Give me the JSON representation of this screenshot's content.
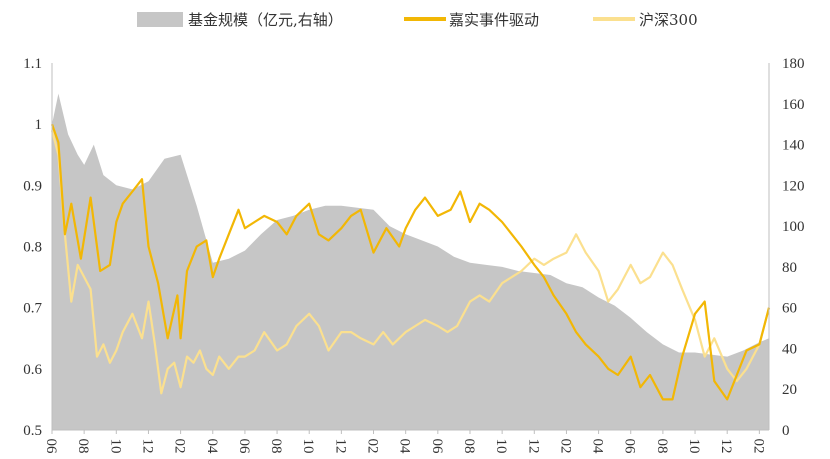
{
  "chart_data": {
    "type": "line",
    "legend": {
      "position": "top",
      "items": [
        {
          "label": "基金规模（亿元,右轴）",
          "color": "#c6c6c6",
          "kind": "area"
        },
        {
          "label": "嘉实事件驱动",
          "color": "#f2b705",
          "kind": "line"
        },
        {
          "label": "沪深300",
          "color": "#fbe08f",
          "kind": "line"
        }
      ]
    },
    "x_tick_labels": [
      "06",
      "08",
      "10",
      "12",
      "02",
      "04",
      "06",
      "08",
      "10",
      "12",
      "02",
      "04",
      "06",
      "08",
      "10",
      "12",
      "02",
      "04",
      "06",
      "08",
      "10",
      "12",
      "02"
    ],
    "y_left": {
      "min": 0.5,
      "max": 1.1,
      "ticks": [
        "0.5",
        "0.6",
        "0.7",
        "0.8",
        "0.9",
        "1",
        "1.1"
      ]
    },
    "y_right": {
      "min": 0,
      "max": 180,
      "ticks": [
        "0",
        "20",
        "40",
        "60",
        "80",
        "100",
        "120",
        "140",
        "160",
        "180"
      ]
    },
    "series": [
      {
        "name": "基金规模（亿元,右轴）",
        "axis": "right",
        "color": "#c6c6c6",
        "x": [
          0,
          0.2,
          0.5,
          0.8,
          1,
          1.3,
          1.6,
          2,
          2.5,
          3,
          3.5,
          4,
          4.5,
          5,
          5.5,
          6,
          6.5,
          7,
          7.5,
          8,
          8.5,
          9,
          9.5,
          10,
          10.5,
          11,
          11.5,
          12,
          12.5,
          13,
          13.5,
          14,
          14.5,
          15,
          15.5,
          16,
          16.5,
          17,
          17.5,
          18,
          18.5,
          19,
          19.5,
          20,
          20.5,
          21,
          21.5,
          22,
          22.3
        ],
        "values": [
          150,
          165,
          145,
          135,
          130,
          140,
          125,
          120,
          118,
          122,
          133,
          135,
          110,
          82,
          84,
          88,
          96,
          103,
          105,
          108,
          110,
          110,
          109,
          108,
          100,
          96,
          93,
          90,
          85,
          82,
          81,
          80,
          78,
          77,
          76,
          72,
          70,
          65,
          61,
          55,
          48,
          42,
          38,
          38,
          37,
          36,
          39,
          43,
          45
        ]
      },
      {
        "name": "嘉实事件驱动",
        "axis": "left",
        "color": "#f2b705",
        "x": [
          0,
          0.2,
          0.4,
          0.6,
          0.9,
          1.2,
          1.5,
          1.8,
          2,
          2.2,
          2.5,
          2.8,
          3,
          3.3,
          3.6,
          3.9,
          4,
          4.2,
          4.5,
          4.8,
          5,
          5.2,
          5.5,
          5.8,
          6,
          6.3,
          6.6,
          7,
          7.3,
          7.6,
          8,
          8.3,
          8.6,
          9,
          9.3,
          9.6,
          10,
          10.4,
          10.8,
          11,
          11.3,
          11.6,
          12,
          12.4,
          12.7,
          13,
          13.3,
          13.6,
          14,
          14.3,
          14.6,
          15,
          15.3,
          15.6,
          16,
          16.3,
          16.6,
          17,
          17.3,
          17.6,
          18,
          18.3,
          18.6,
          19,
          19.3,
          19.6,
          20,
          20.3,
          20.6,
          21,
          21.3,
          21.6,
          22,
          22.3
        ],
        "values": [
          1.0,
          0.97,
          0.82,
          0.87,
          0.78,
          0.88,
          0.76,
          0.77,
          0.84,
          0.87,
          0.89,
          0.91,
          0.8,
          0.74,
          0.65,
          0.72,
          0.65,
          0.76,
          0.8,
          0.81,
          0.75,
          0.78,
          0.82,
          0.86,
          0.83,
          0.84,
          0.85,
          0.84,
          0.82,
          0.85,
          0.87,
          0.82,
          0.81,
          0.83,
          0.85,
          0.86,
          0.79,
          0.83,
          0.8,
          0.83,
          0.86,
          0.88,
          0.85,
          0.86,
          0.89,
          0.84,
          0.87,
          0.86,
          0.84,
          0.82,
          0.8,
          0.77,
          0.75,
          0.72,
          0.69,
          0.66,
          0.64,
          0.62,
          0.6,
          0.59,
          0.62,
          0.57,
          0.59,
          0.55,
          0.55,
          0.62,
          0.69,
          0.71,
          0.58,
          0.55,
          0.59,
          0.63,
          0.64,
          0.7
        ]
      },
      {
        "name": "沪深300",
        "axis": "left",
        "color": "#fbe08f",
        "x": [
          0,
          0.2,
          0.4,
          0.6,
          0.8,
          1,
          1.2,
          1.4,
          1.6,
          1.8,
          2,
          2.2,
          2.5,
          2.8,
          3,
          3.2,
          3.4,
          3.6,
          3.8,
          4,
          4.2,
          4.4,
          4.6,
          4.8,
          5,
          5.2,
          5.5,
          5.8,
          6,
          6.3,
          6.6,
          7,
          7.3,
          7.6,
          8,
          8.3,
          8.6,
          9,
          9.3,
          9.6,
          10,
          10.3,
          10.6,
          11,
          11.3,
          11.6,
          12,
          12.3,
          12.6,
          13,
          13.3,
          13.6,
          14,
          14.3,
          14.6,
          15,
          15.3,
          15.6,
          16,
          16.3,
          16.6,
          17,
          17.3,
          17.6,
          18,
          18.3,
          18.6,
          19,
          19.3,
          19.6,
          20,
          20.3,
          20.6,
          21,
          21.3,
          21.6,
          22,
          22.3
        ],
        "values": [
          0.99,
          0.95,
          0.82,
          0.71,
          0.77,
          0.75,
          0.73,
          0.62,
          0.64,
          0.61,
          0.63,
          0.66,
          0.69,
          0.65,
          0.71,
          0.64,
          0.56,
          0.6,
          0.61,
          0.57,
          0.62,
          0.61,
          0.63,
          0.6,
          0.59,
          0.62,
          0.6,
          0.62,
          0.62,
          0.63,
          0.66,
          0.63,
          0.64,
          0.67,
          0.69,
          0.67,
          0.63,
          0.66,
          0.66,
          0.65,
          0.64,
          0.66,
          0.64,
          0.66,
          0.67,
          0.68,
          0.67,
          0.66,
          0.67,
          0.71,
          0.72,
          0.71,
          0.74,
          0.75,
          0.76,
          0.78,
          0.77,
          0.78,
          0.79,
          0.82,
          0.79,
          0.76,
          0.71,
          0.73,
          0.77,
          0.74,
          0.75,
          0.79,
          0.77,
          0.73,
          0.68,
          0.62,
          0.65,
          0.6,
          0.58,
          0.6,
          0.64,
          0.7
        ]
      }
    ]
  }
}
